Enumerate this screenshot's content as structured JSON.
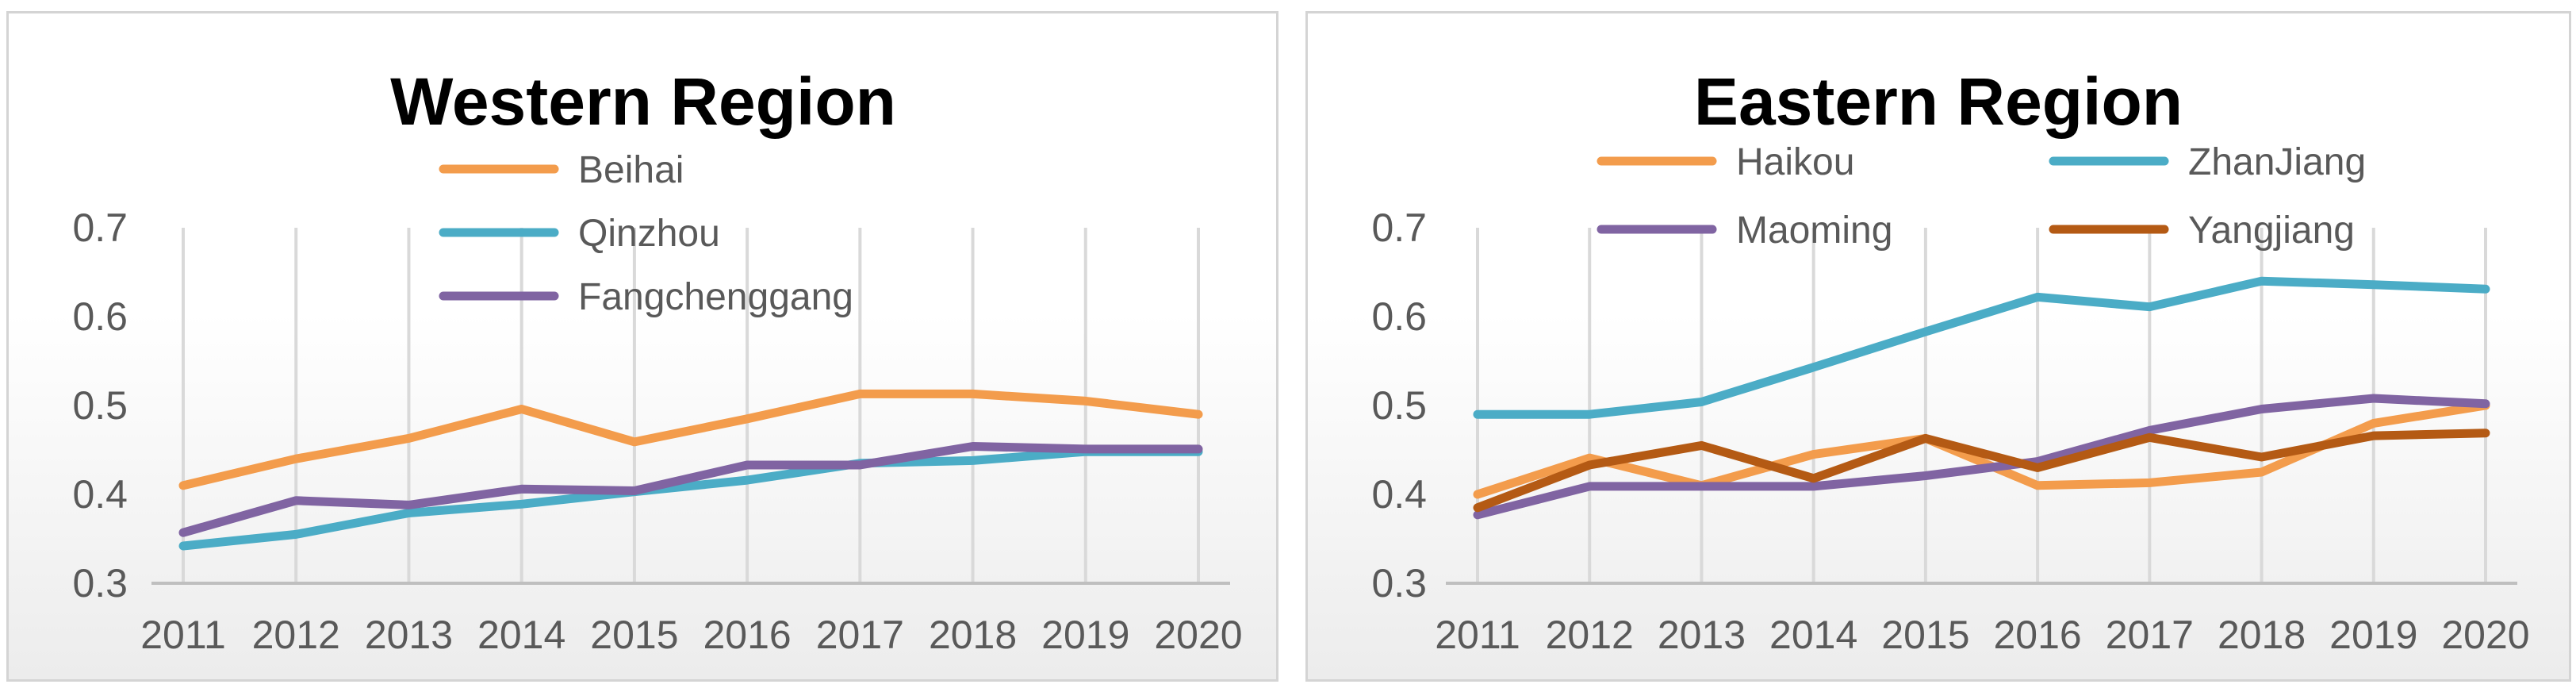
{
  "chart_data": [
    {
      "type": "line",
      "title": "Western Region",
      "categories": [
        "2011",
        "2012",
        "2013",
        "2014",
        "2015",
        "2016",
        "2017",
        "2018",
        "2019",
        "2020"
      ],
      "ylim": [
        0.3,
        0.7
      ],
      "yticks": [
        "0.7",
        "0.6",
        "0.5",
        "0.4",
        "0.3"
      ],
      "xlabel": "",
      "ylabel": "",
      "grid": "vertical",
      "legend": "top-center",
      "series": [
        {
          "name": "Beihai",
          "color": "#f39c4c",
          "values": [
            0.41,
            0.44,
            0.463,
            0.496,
            0.459,
            0.485,
            0.513,
            0.513,
            0.505,
            0.49
          ]
        },
        {
          "name": "Qinzhou",
          "color": "#4bacc6",
          "values": [
            0.342,
            0.355,
            0.379,
            0.389,
            0.403,
            0.416,
            0.435,
            0.438,
            0.448,
            0.448
          ]
        },
        {
          "name": "Fangchenggang",
          "color": "#8064a2",
          "values": [
            0.357,
            0.393,
            0.388,
            0.406,
            0.404,
            0.433,
            0.433,
            0.454,
            0.451,
            0.451
          ]
        }
      ]
    },
    {
      "type": "line",
      "title": "Eastern Region",
      "categories": [
        "2011",
        "2012",
        "2013",
        "2014",
        "2015",
        "2016",
        "2017",
        "2018",
        "2019",
        "2020"
      ],
      "ylim": [
        0.3,
        0.7
      ],
      "yticks": [
        "0.7",
        "0.6",
        "0.5",
        "0.4",
        "0.3"
      ],
      "xlabel": "",
      "ylabel": "",
      "grid": "vertical",
      "legend": "top",
      "series": [
        {
          "name": "Haikou",
          "color": "#f39c4c",
          "values": [
            0.4,
            0.441,
            0.41,
            0.445,
            0.463,
            0.41,
            0.413,
            0.425,
            0.48,
            0.5
          ]
        },
        {
          "name": "ZhanJiang",
          "color": "#4bacc6",
          "values": [
            0.49,
            0.49,
            0.504,
            0.543,
            0.583,
            0.622,
            0.611,
            0.64,
            0.636,
            0.631
          ]
        },
        {
          "name": "Maoming",
          "color": "#8064a2",
          "values": [
            0.377,
            0.409,
            0.409,
            0.409,
            0.421,
            0.437,
            0.472,
            0.496,
            0.508,
            0.502
          ]
        },
        {
          "name": "Yangjiang",
          "color": "#b45a14",
          "values": [
            0.385,
            0.433,
            0.455,
            0.418,
            0.463,
            0.43,
            0.464,
            0.442,
            0.466,
            0.469
          ]
        }
      ]
    }
  ]
}
